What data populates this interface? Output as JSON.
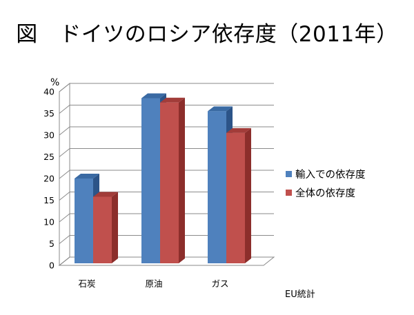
{
  "title": "図　ドイツのロシア依存度（2011年）",
  "unit_label": "%",
  "source_note": "EU統計",
  "colors": {
    "import_front": "#4f81bd",
    "import_side": "#2c5488",
    "import_top": "#3a6aa3",
    "total_front": "#c0504d",
    "total_side": "#8c2e2b",
    "total_top": "#a23c39",
    "grid": "#8a8a8a"
  },
  "chart_data": {
    "type": "bar",
    "categories": [
      "石炭",
      "原油",
      "ガス"
    ],
    "series": [
      {
        "name": "輸入での依存度",
        "values": [
          20,
          38.5,
          35.5
        ]
      },
      {
        "name": "全体の依存度",
        "values": [
          15.8,
          37.5,
          30.5
        ]
      }
    ],
    "xlabel": "",
    "ylabel": "%",
    "ylim": [
      0,
      40
    ],
    "yticks": [
      0,
      5,
      10,
      15,
      20,
      25,
      30,
      35,
      40
    ],
    "grid": true,
    "legend_position": "right",
    "style": "3d-clustered-column"
  }
}
